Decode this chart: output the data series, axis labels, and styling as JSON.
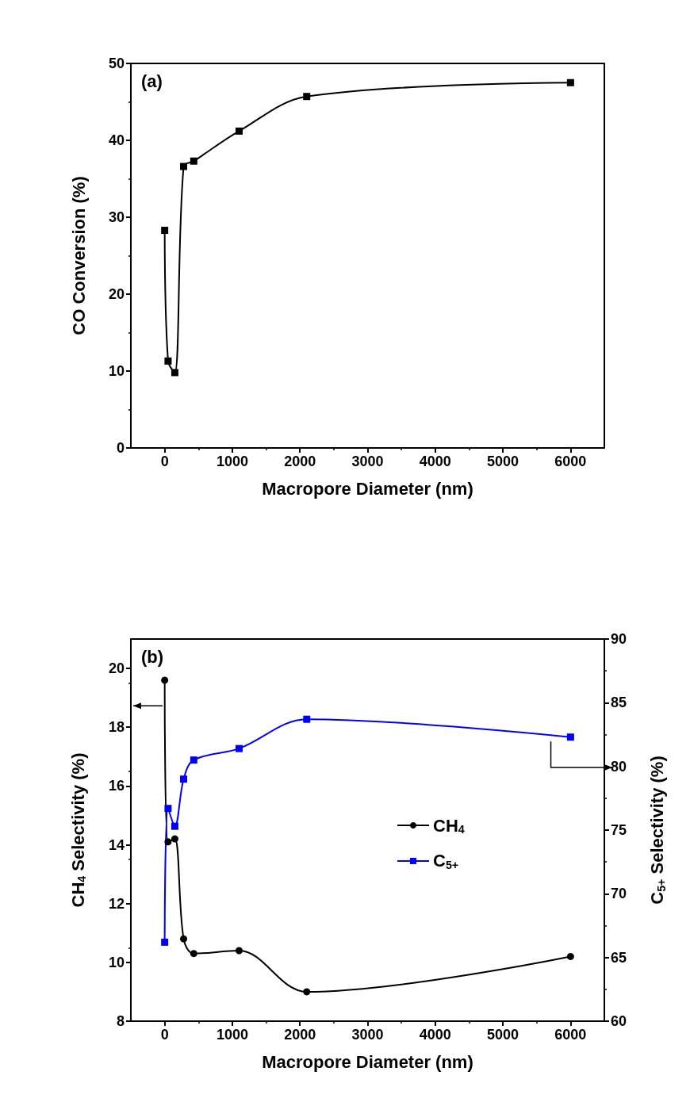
{
  "chart_data": [
    {
      "type": "line",
      "title": "(a)",
      "xlabel": "Macropore Diameter (nm)",
      "ylabel": "CO Conversion (%)",
      "x": [
        0,
        50,
        150,
        280,
        430,
        1100,
        2100,
        6000
      ],
      "series": [
        {
          "color": "#000000",
          "values": [
            28.3,
            11.3,
            9.8,
            36.6,
            37.3,
            41.2,
            45.7,
            47.5
          ]
        }
      ],
      "marker": "square",
      "xlim": [
        -500,
        6500
      ],
      "xticks": [
        0,
        1000,
        2000,
        3000,
        4000,
        5000,
        6000
      ],
      "ylim": [
        0,
        50
      ],
      "yticks": [
        0,
        10,
        20,
        30,
        40,
        50
      ],
      "grid": false,
      "legend": false
    },
    {
      "type": "line",
      "title": "(b)",
      "xlabel": "Macropore Diameter (nm)",
      "ylabel": "CH$_{4}$ Selectivity (%)",
      "y2label": "C$_{5+}$ Selectivity (%)",
      "x": [
        0,
        50,
        150,
        280,
        430,
        1100,
        2100,
        6000
      ],
      "series": [
        {
          "name": "CH$_{4}$",
          "color": "#000000",
          "marker": "circle",
          "values": [
            19.6,
            14.1,
            14.2,
            10.8,
            10.3,
            10.4,
            9.0,
            10.2
          ]
        },
        {
          "name": "C$_{5+}$",
          "color": "#0000ff",
          "marker": "square",
          "axis": "y2",
          "values": [
            66.2,
            76.7,
            75.3,
            79.0,
            80.5,
            81.4,
            83.7,
            82.3
          ]
        }
      ],
      "xlim": [
        -500,
        6500
      ],
      "xticks": [
        0,
        1000,
        2000,
        3000,
        4000,
        5000,
        6000
      ],
      "ylim": [
        8,
        21
      ],
      "yticks": [
        8,
        10,
        12,
        14,
        16,
        18,
        20
      ],
      "y2lim": [
        60,
        90
      ],
      "y2ticks": [
        60,
        65,
        70,
        75,
        80,
        85,
        90
      ],
      "grid": false,
      "legend": "center"
    }
  ]
}
